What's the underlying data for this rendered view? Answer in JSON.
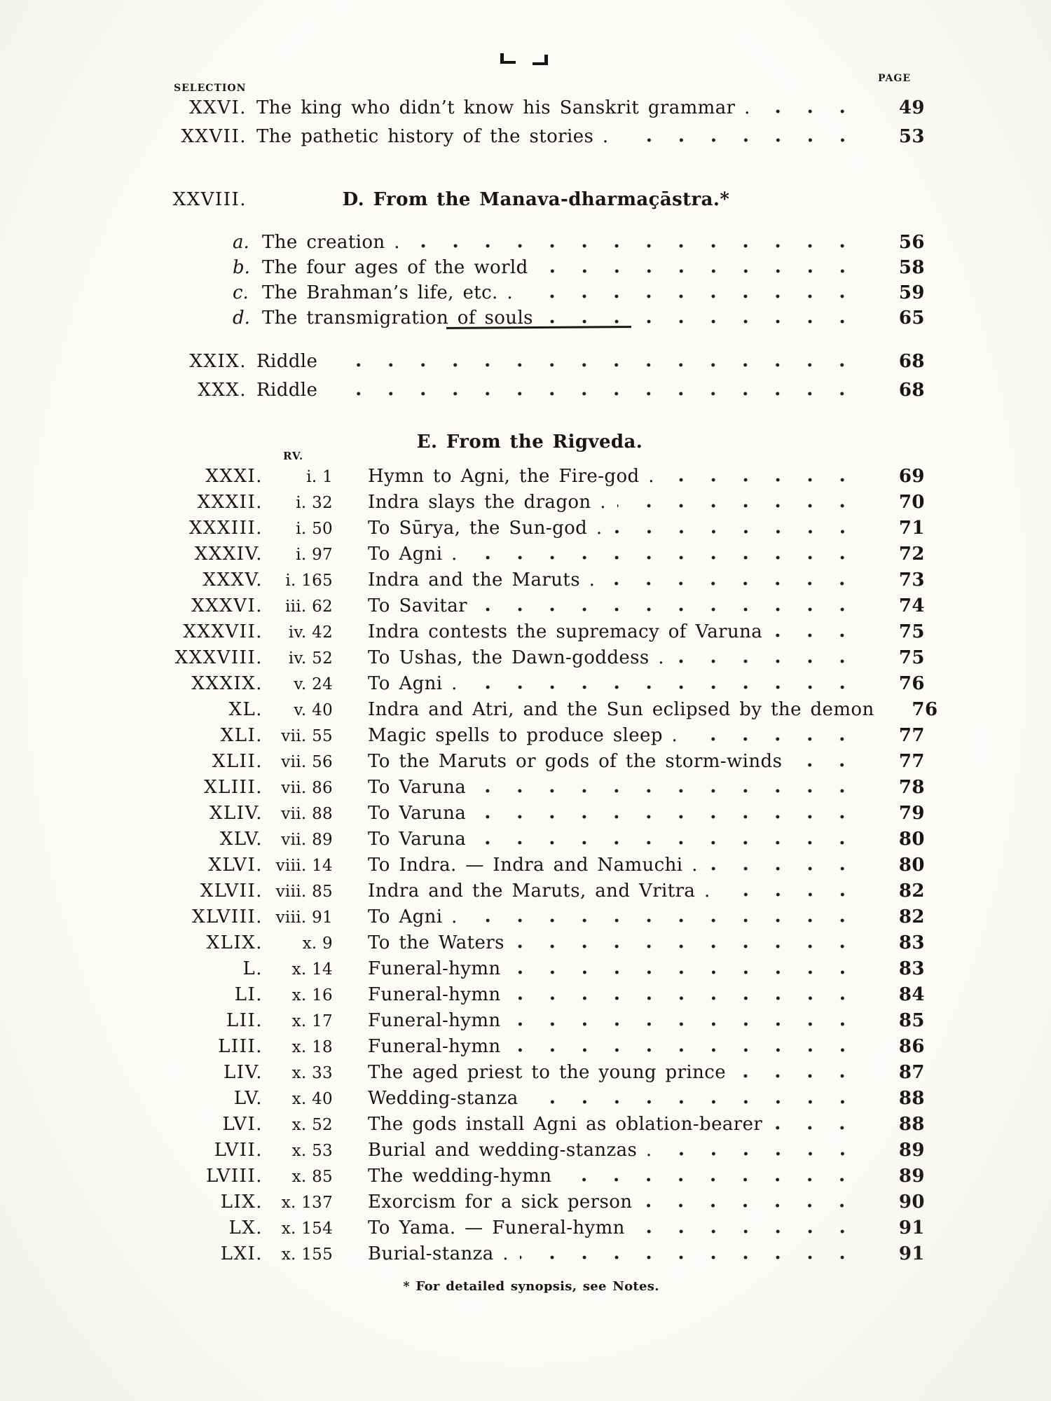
{
  "colors": {
    "paper": "#fcfbf8",
    "ink": "#1a1511"
  },
  "header": {
    "selection_label": "SELECTION",
    "page_label": "PAGE"
  },
  "front_entries": [
    {
      "roman": "XXVI.",
      "title": "The king who didn’t know his Sanskrit grammar .",
      "page": "49"
    },
    {
      "roman": "XXVII.",
      "title": "The pathetic history of the stories .",
      "page": "53"
    }
  ],
  "section_d": {
    "roman": "XXVIII.",
    "heading": "D.  From the Manava-dharmaçāstra.*",
    "entries": [
      {
        "letter": "a.",
        "title": "The creation .",
        "page": "56"
      },
      {
        "letter": "b.",
        "title": "The four ages of the world",
        "page": "58"
      },
      {
        "letter": "c.",
        "title": "The Brahman’s life, etc. .",
        "page": "59"
      },
      {
        "letter": "d.",
        "title": "The transmigration of souls",
        "page": "65"
      }
    ]
  },
  "riddles": [
    {
      "roman": "XXIX.",
      "title": "Riddle",
      "page": "68"
    },
    {
      "roman": "XXX.",
      "title": "Riddle",
      "page": "68"
    }
  ],
  "section_e": {
    "heading": "E.  From the Rigveda.",
    "rv_label": "RV.",
    "entries": [
      {
        "roman": "XXXI.",
        "rv": "i. 1",
        "title": "Hymn to Agni, the Fire-god .",
        "page": "69"
      },
      {
        "roman": "XXXII.",
        "rv": "i. 32",
        "title": "Indra slays the dragon .",
        "page": "70"
      },
      {
        "roman": "XXXIII.",
        "rv": "i. 50",
        "title": "To Sūrya, the Sun-god .",
        "page": "71"
      },
      {
        "roman": "XXXIV.",
        "rv": "i. 97",
        "title": "To Agni .",
        "page": "72"
      },
      {
        "roman": "XXXV.",
        "rv": "i. 165",
        "title": "Indra and the Maruts .",
        "page": "73"
      },
      {
        "roman": "XXXVI.",
        "rv": "iii. 62",
        "title": "To Savitar",
        "page": "74"
      },
      {
        "roman": "XXXVII.",
        "rv": "iv. 42",
        "title": "Indra contests the supremacy of Varuna",
        "page": "75"
      },
      {
        "roman": "XXXVIII.",
        "rv": "iv. 52",
        "title": "To Ushas, the Dawn-goddess .",
        "page": "75"
      },
      {
        "roman": "XXXIX.",
        "rv": "v. 24",
        "title": "To Agni .",
        "page": "76"
      },
      {
        "roman": "XL.",
        "rv": "v. 40",
        "title": "Indra and Atri, and the Sun eclipsed by the demon",
        "page": "76"
      },
      {
        "roman": "XLI.",
        "rv": "vii. 55",
        "title": "Magic spells to produce sleep .",
        "page": "77"
      },
      {
        "roman": "XLII.",
        "rv": "vii. 56",
        "title": "To the Maruts or gods of the storm-winds",
        "page": "77"
      },
      {
        "roman": "XLIII.",
        "rv": "vii. 86",
        "title": "To Varuna",
        "page": "78"
      },
      {
        "roman": "XLIV.",
        "rv": "vii. 88",
        "title": "To Varuna",
        "page": "79"
      },
      {
        "roman": "XLV.",
        "rv": "vii. 89",
        "title": "To Varuna",
        "page": "80"
      },
      {
        "roman": "XLVI.",
        "rv": "viii. 14",
        "title": "To Indra. — Indra and Namuchi .",
        "page": "80"
      },
      {
        "roman": "XLVII.",
        "rv": "viii. 85",
        "title": "Indra and the Maruts, and Vritra .",
        "page": "82"
      },
      {
        "roman": "XLVIII.",
        "rv": "viii. 91",
        "title": "To Agni .",
        "page": "82"
      },
      {
        "roman": "XLIX.",
        "rv": "x. 9",
        "title": "To the Waters",
        "page": "83"
      },
      {
        "roman": "L.",
        "rv": "x. 14",
        "title": "Funeral-hymn",
        "page": "83"
      },
      {
        "roman": "LI.",
        "rv": "x. 16",
        "title": "Funeral-hymn",
        "page": "84"
      },
      {
        "roman": "LII.",
        "rv": "x. 17",
        "title": "Funeral-hymn",
        "page": "85"
      },
      {
        "roman": "LIII.",
        "rv": "x. 18",
        "title": "Funeral-hymn",
        "page": "86"
      },
      {
        "roman": "LIV.",
        "rv": "x. 33",
        "title": "The aged priest to the young prince",
        "page": "87"
      },
      {
        "roman": "LV.",
        "rv": "x. 40",
        "title": "Wedding-stanza",
        "page": "88"
      },
      {
        "roman": "LVI.",
        "rv": "x. 52",
        "title": "The gods install Agni as oblation-bearer",
        "page": "88"
      },
      {
        "roman": "LVII.",
        "rv": "x. 53",
        "title": "Burial and wedding-stanzas .",
        "page": "89"
      },
      {
        "roman": "LVIII.",
        "rv": "x. 85",
        "title": "The wedding-hymn",
        "page": "89"
      },
      {
        "roman": "LIX.",
        "rv": "x. 137",
        "title": "Exorcism for a sick person",
        "page": "90"
      },
      {
        "roman": "LX.",
        "rv": "x. 154",
        "title": "To Yama. — Funeral-hymn",
        "page": "91"
      },
      {
        "roman": "LXI.",
        "rv": "x. 155",
        "title": "Burial-stanza .",
        "page": "91"
      }
    ]
  },
  "footnote": "* For detailed synopsis, see Notes."
}
